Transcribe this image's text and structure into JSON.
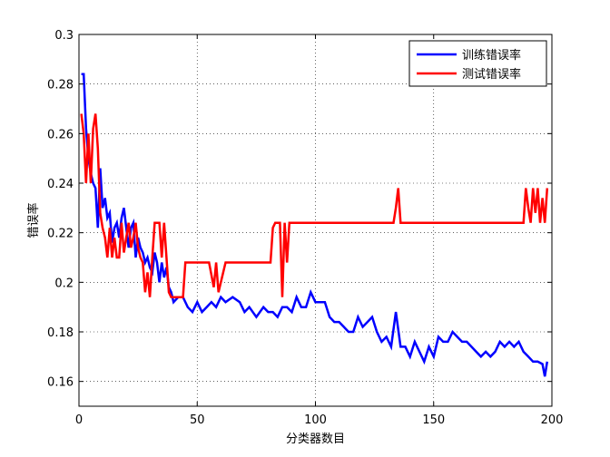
{
  "chart_data": {
    "type": "line",
    "title": "",
    "xlabel": "分类器数目",
    "ylabel": "错误率",
    "xlim": [
      0,
      200
    ],
    "ylim": [
      0.15,
      0.3
    ],
    "xticks": [
      0,
      50,
      100,
      150,
      200
    ],
    "yticks": [
      0.16,
      0.18,
      0.2,
      0.22,
      0.24,
      0.26,
      0.28,
      0.3
    ],
    "xtick_labels": [
      "0",
      "50",
      "100",
      "150",
      "200"
    ],
    "ytick_labels": [
      "0.16",
      "0.18",
      "0.2",
      "0.22",
      "0.24",
      "0.26",
      "0.28",
      "0.3"
    ],
    "grid": true,
    "legend_position": "top-right",
    "series": [
      {
        "name": "训练错误率",
        "color": "#0000ff",
        "x": [
          1,
          2,
          3,
          4,
          5,
          6,
          7,
          8,
          9,
          10,
          11,
          12,
          13,
          14,
          15,
          16,
          17,
          18,
          19,
          20,
          21,
          22,
          23,
          24,
          25,
          26,
          27,
          28,
          29,
          30,
          31,
          32,
          33,
          34,
          35,
          36,
          37,
          38,
          39,
          40,
          42,
          44,
          46,
          48,
          50,
          52,
          54,
          56,
          58,
          60,
          62,
          65,
          68,
          70,
          72,
          75,
          78,
          80,
          82,
          84,
          86,
          88,
          90,
          92,
          94,
          96,
          98,
          100,
          102,
          104,
          106,
          108,
          110,
          112,
          114,
          116,
          118,
          120,
          122,
          124,
          126,
          128,
          130,
          132,
          134,
          136,
          138,
          140,
          142,
          144,
          146,
          148,
          150,
          152,
          154,
          156,
          158,
          160,
          162,
          164,
          166,
          168,
          170,
          172,
          174,
          176,
          178,
          180,
          182,
          184,
          186,
          188,
          190,
          192,
          194,
          196,
          197,
          198
        ],
        "values": [
          0.284,
          0.284,
          0.262,
          0.25,
          0.244,
          0.24,
          0.238,
          0.222,
          0.246,
          0.23,
          0.234,
          0.226,
          0.228,
          0.216,
          0.222,
          0.224,
          0.218,
          0.226,
          0.23,
          0.222,
          0.214,
          0.222,
          0.224,
          0.21,
          0.218,
          0.214,
          0.212,
          0.208,
          0.21,
          0.206,
          0.204,
          0.212,
          0.208,
          0.2,
          0.208,
          0.202,
          0.206,
          0.198,
          0.196,
          0.192,
          0.194,
          0.194,
          0.19,
          0.188,
          0.192,
          0.188,
          0.19,
          0.192,
          0.19,
          0.194,
          0.192,
          0.194,
          0.192,
          0.188,
          0.19,
          0.186,
          0.19,
          0.188,
          0.188,
          0.186,
          0.19,
          0.19,
          0.188,
          0.194,
          0.19,
          0.19,
          0.196,
          0.192,
          0.192,
          0.192,
          0.186,
          0.184,
          0.184,
          0.182,
          0.18,
          0.18,
          0.186,
          0.182,
          0.184,
          0.186,
          0.18,
          0.176,
          0.178,
          0.174,
          0.188,
          0.174,
          0.174,
          0.17,
          0.176,
          0.172,
          0.168,
          0.174,
          0.17,
          0.178,
          0.176,
          0.176,
          0.18,
          0.178,
          0.176,
          0.176,
          0.174,
          0.172,
          0.17,
          0.172,
          0.17,
          0.172,
          0.176,
          0.174,
          0.176,
          0.174,
          0.176,
          0.172,
          0.17,
          0.168,
          0.168,
          0.167,
          0.162,
          0.168
        ]
      },
      {
        "name": "测试错误率",
        "color": "#ff0000",
        "x": [
          1,
          2,
          3,
          4,
          5,
          6,
          7,
          8,
          9,
          10,
          11,
          12,
          13,
          14,
          15,
          16,
          17,
          18,
          19,
          20,
          21,
          22,
          23,
          24,
          25,
          26,
          27,
          28,
          29,
          30,
          31,
          32,
          33,
          34,
          35,
          36,
          37,
          38,
          39,
          40,
          42,
          44,
          45,
          48,
          50,
          52,
          55,
          57,
          58,
          59,
          60,
          62,
          65,
          70,
          75,
          80,
          81,
          82,
          83,
          84,
          85,
          86,
          87,
          88,
          89,
          90,
          95,
          100,
          110,
          120,
          130,
          133,
          134,
          135,
          136,
          137,
          140,
          150,
          160,
          170,
          180,
          188,
          189,
          190,
          191,
          192,
          193,
          194,
          195,
          196,
          197,
          198
        ],
        "values": [
          0.268,
          0.26,
          0.24,
          0.26,
          0.24,
          0.262,
          0.268,
          0.254,
          0.228,
          0.222,
          0.218,
          0.21,
          0.222,
          0.21,
          0.218,
          0.21,
          0.21,
          0.224,
          0.212,
          0.218,
          0.224,
          0.214,
          0.218,
          0.224,
          0.214,
          0.21,
          0.208,
          0.196,
          0.204,
          0.194,
          0.21,
          0.224,
          0.224,
          0.224,
          0.21,
          0.224,
          0.21,
          0.196,
          0.194,
          0.194,
          0.194,
          0.194,
          0.208,
          0.208,
          0.208,
          0.208,
          0.208,
          0.198,
          0.208,
          0.196,
          0.2,
          0.208,
          0.208,
          0.208,
          0.208,
          0.208,
          0.208,
          0.222,
          0.224,
          0.224,
          0.224,
          0.194,
          0.224,
          0.208,
          0.224,
          0.224,
          0.224,
          0.224,
          0.224,
          0.224,
          0.224,
          0.224,
          0.23,
          0.238,
          0.224,
          0.224,
          0.224,
          0.224,
          0.224,
          0.224,
          0.224,
          0.224,
          0.238,
          0.23,
          0.224,
          0.238,
          0.228,
          0.238,
          0.224,
          0.234,
          0.224,
          0.238
        ]
      }
    ]
  }
}
